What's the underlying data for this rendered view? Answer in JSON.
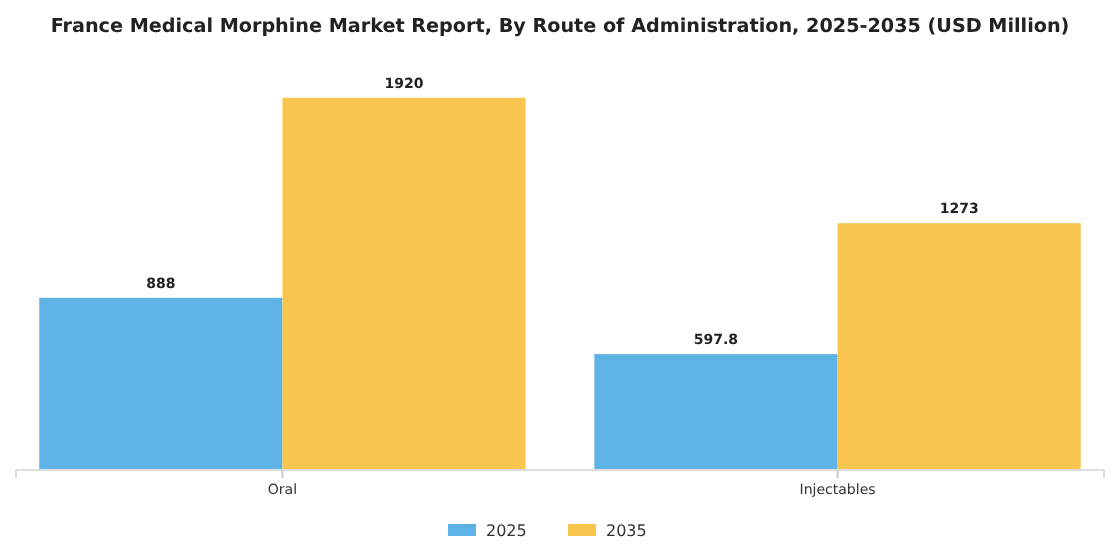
{
  "chart_data": {
    "type": "bar",
    "title": "France Medical Morphine Market Report, By Route of Administration, 2025-2035 (USD Million)",
    "categories": [
      "Oral",
      "Injectables"
    ],
    "series": [
      {
        "name": "2025",
        "color": "#5db3e6",
        "values": [
          888,
          597.8
        ]
      },
      {
        "name": "2035",
        "color": "#f9c54e",
        "values": [
          1920,
          1273
        ]
      }
    ],
    "data_labels": true,
    "legend": "bottom"
  }
}
